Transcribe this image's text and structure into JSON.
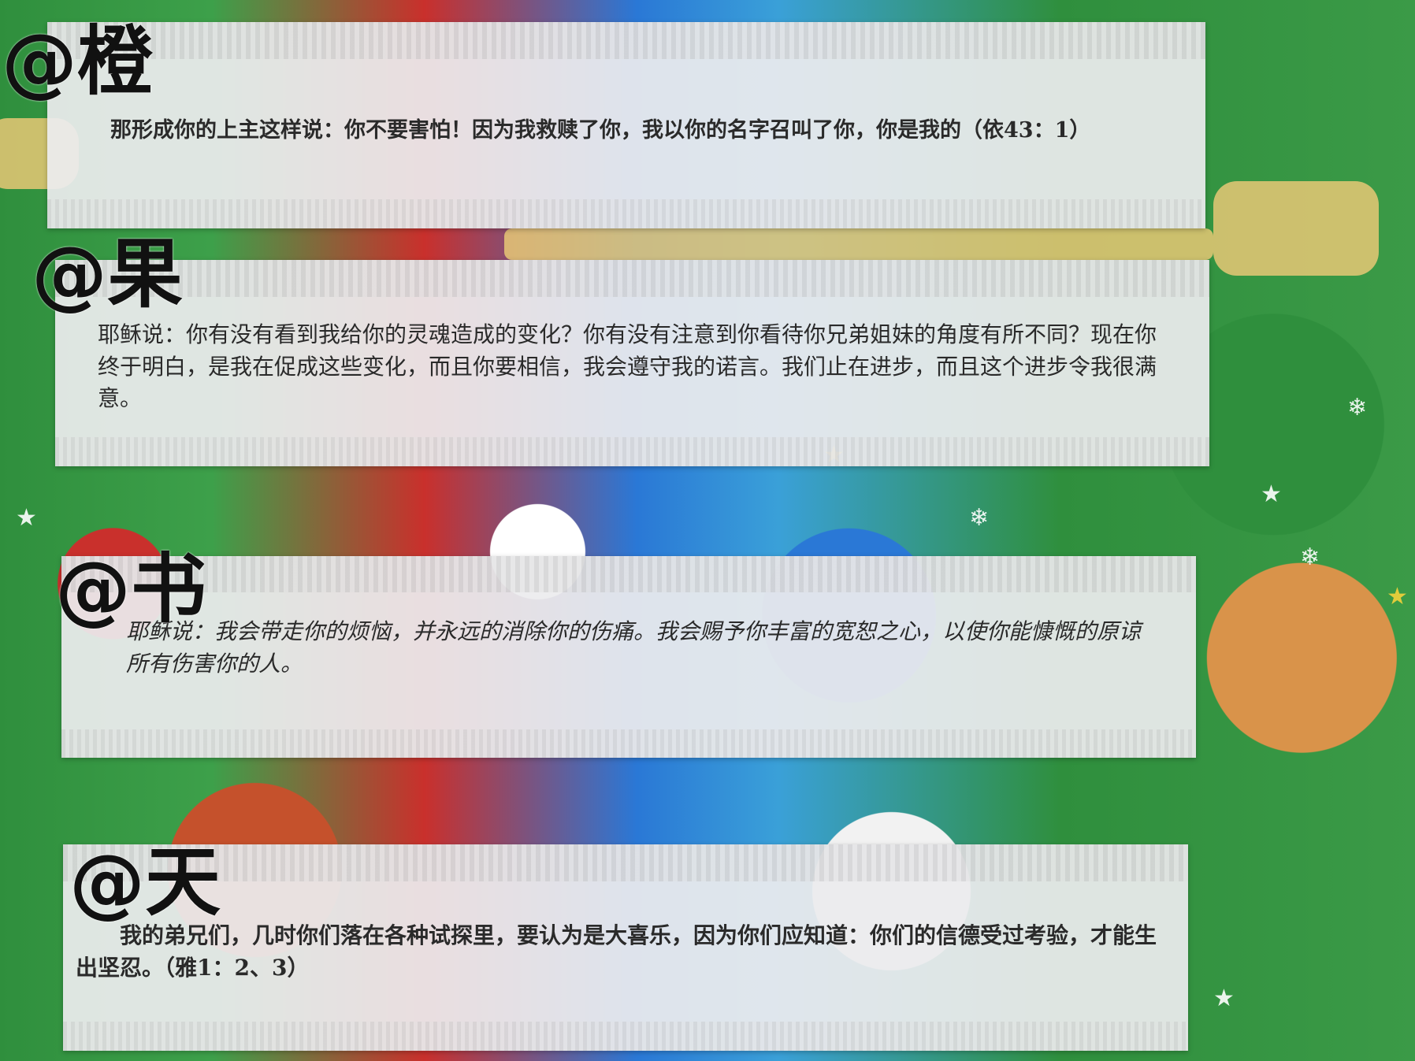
{
  "slips": [
    {
      "tag": "@橙",
      "text": "　　那形成你的上主这样说：你不要害怕！因为我救赎了你，我以你的名字召叫了你，你是我的（依43：1）"
    },
    {
      "tag": "@果",
      "text": "耶稣说：你有没有看到我给你的灵魂造成的变化？你有没有注意到你看待你兄弟姐妹的角度有所不同？现在你终于明白，是我在促成这些变化，而且你要相信，我会遵守我的诺言。我们止在进步，而且这个进步令我很满意。"
    },
    {
      "tag": "@书",
      "text": "耶稣说：我会带走你的烦恼，并永远的消除你的伤痛。我会赐予你丰富的宽恕之心，以使你能慷慨的原谅所有伤害你的人。"
    },
    {
      "tag": "@天",
      "text": "　　我的弟兄们，几时你们落在各种试探里，要认为是大喜乐，因为你们应知道：你们的信德受过考验，才能生出坚忍。（雅1：2、3）"
    }
  ],
  "background": {
    "theme": "christmas-wrapping-paper",
    "colors": {
      "green": "#2f8f3d",
      "red": "#c9302c",
      "blue": "#2a78d6",
      "gold": "#e8c876"
    }
  }
}
